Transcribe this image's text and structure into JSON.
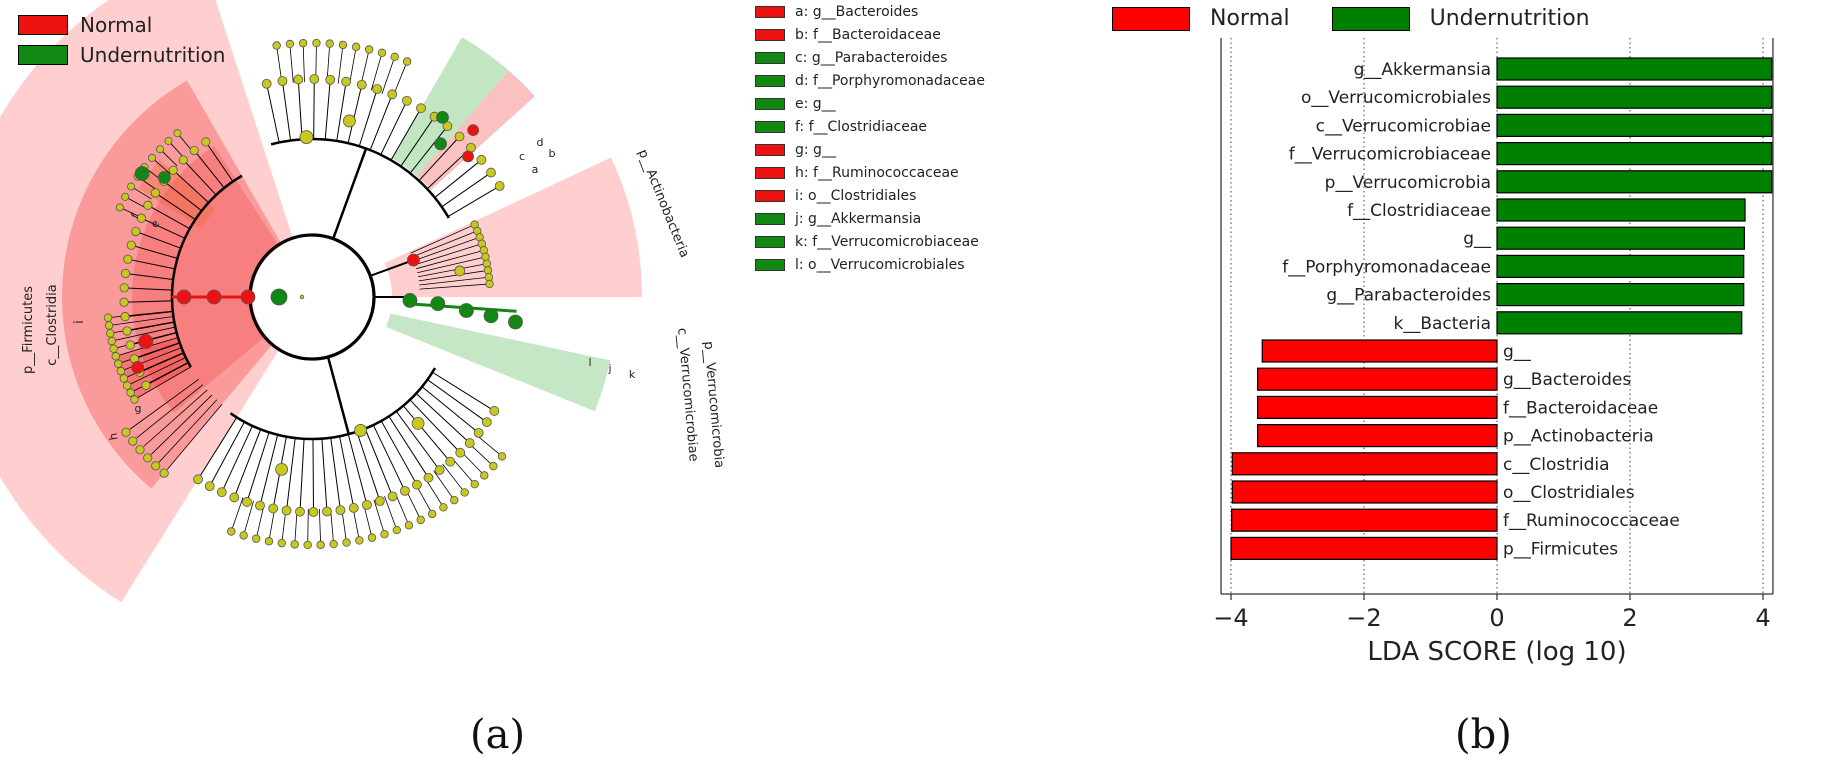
{
  "panel_a": {
    "legend": [
      {
        "label": "Normal",
        "color": "#ee1111"
      },
      {
        "label": "Undernutrition",
        "color": "#118811"
      }
    ],
    "key": [
      {
        "text": "a: g__Bacteroides",
        "group": "normal"
      },
      {
        "text": "b: f__Bacteroidaceae",
        "group": "normal"
      },
      {
        "text": "c: g__Parabacteroides",
        "group": "undernutrition"
      },
      {
        "text": "d: f__Porphyromonadaceae",
        "group": "undernutrition"
      },
      {
        "text": "e: g__",
        "group": "undernutrition"
      },
      {
        "text": "f: f__Clostridiaceae",
        "group": "undernutrition"
      },
      {
        "text": "g: g__",
        "group": "normal"
      },
      {
        "text": "h: f__Ruminococcaceae",
        "group": "normal"
      },
      {
        "text": "i: o__Clostridiales",
        "group": "normal"
      },
      {
        "text": "j: g__Akkermansia",
        "group": "undernutrition"
      },
      {
        "text": "k: f__Verrucomicrobiaceae",
        "group": "undernutrition"
      },
      {
        "text": "l: o__Verrucomicrobiales",
        "group": "undernutrition"
      }
    ],
    "clade_labels": {
      "firmicutes": "p__Firmicutes",
      "clostridia": "c__Clostridia",
      "i": "i",
      "actinobacteria": "p__Actinobacteria",
      "verrucomicrobia": "p__Verrucomicrobia",
      "verrucomicrobiae": "c__Verrucomicrobiae",
      "f": "f",
      "e": "e",
      "g": "g",
      "h": "h",
      "a": "a",
      "b": "b",
      "c": "c",
      "d": "d",
      "j": "j",
      "k": "k",
      "l": "l"
    },
    "caption": "(a)"
  },
  "panel_b": {
    "legend": [
      {
        "label": "Normal",
        "color": "#ff0000"
      },
      {
        "label": "Undernutrition",
        "color": "#008000"
      }
    ],
    "caption": "(b)"
  },
  "colors": {
    "normal": "#ff0000",
    "undernutrition": "#008000",
    "node": "#c8c81e"
  },
  "chart_data": {
    "type": "bar",
    "orientation": "horizontal",
    "xlabel": "LDA SCORE (log 10)",
    "xlim": [
      -4.15,
      4.15
    ],
    "xticks": [
      -4,
      -2,
      0,
      2,
      4
    ],
    "xtick_labels": [
      "−4",
      "−2",
      "0",
      "2",
      "4"
    ],
    "grid": "vertical dotted",
    "categories": [
      "g__Akkermansia",
      "o__Verrucomicrobiales",
      "c__Verrucomicrobiae",
      "f__Verrucomicrobiaceae",
      "p__Verrucomicrobia",
      "f__Clostridiaceae",
      "g__",
      "f__Porphyromonadaceae",
      "g__Parabacteroides",
      "k__Bacteria",
      "g__",
      "g__Bacteroides",
      "f__Bacteroidaceae",
      "p__Actinobacteria",
      "c__Clostridia",
      "o__Clostridiales",
      "f__Ruminococcaceae",
      "p__Firmicutes"
    ],
    "values": [
      4.13,
      4.13,
      4.13,
      4.13,
      4.13,
      3.73,
      3.72,
      3.71,
      3.71,
      3.68,
      -3.53,
      -3.6,
      -3.6,
      -3.6,
      -3.98,
      -3.98,
      -3.99,
      -4.0
    ],
    "groups": [
      "Undernutrition",
      "Undernutrition",
      "Undernutrition",
      "Undernutrition",
      "Undernutrition",
      "Undernutrition",
      "Undernutrition",
      "Undernutrition",
      "Undernutrition",
      "Undernutrition",
      "Normal",
      "Normal",
      "Normal",
      "Normal",
      "Normal",
      "Normal",
      "Normal",
      "Normal"
    ]
  }
}
